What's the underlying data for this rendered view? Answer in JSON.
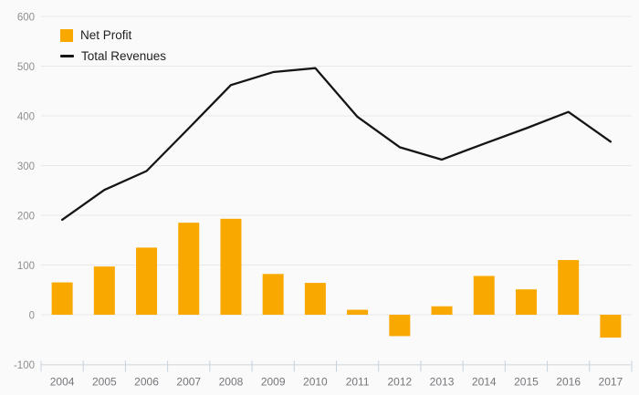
{
  "legend": {
    "items": [
      {
        "label": "Net Profit",
        "type": "bar",
        "color": "#F9A800"
      },
      {
        "label": "Total Revenues",
        "type": "line",
        "color": "#151515"
      }
    ]
  },
  "chart_data": {
    "type": "combo",
    "title": "",
    "xlabel": "",
    "ylabel": "",
    "categories": [
      "2004",
      "2005",
      "2006",
      "2007",
      "2008",
      "2009",
      "2010",
      "2011",
      "2012",
      "2013",
      "2014",
      "2015",
      "2016",
      "2017"
    ],
    "series": [
      {
        "name": "Net Profit",
        "type": "bar",
        "color": "#F9A800",
        "values": [
          65,
          97,
          135,
          185,
          193,
          82,
          64,
          10,
          -43,
          17,
          78,
          51,
          110,
          -46
        ]
      },
      {
        "name": "Total Revenues",
        "type": "line",
        "color": "#151515",
        "values": [
          191,
          251,
          289,
          375,
          462,
          488,
          496,
          398,
          337,
          312,
          344,
          375,
          408,
          348
        ]
      }
    ],
    "ylim": [
      -100,
      600
    ],
    "y_ticks": [
      600,
      500,
      400,
      300,
      200,
      100,
      0,
      -100
    ],
    "grid": true,
    "legend_position": "top-left"
  },
  "colors": {
    "background": "#FAFAFA",
    "gridline": "#E8E8E8",
    "axis_line": "#D9DEE4",
    "tick": "#C6D1DD",
    "y_label": "#8F8F8F",
    "x_label": "#75767A",
    "legend_text": "#1F1F1F"
  }
}
